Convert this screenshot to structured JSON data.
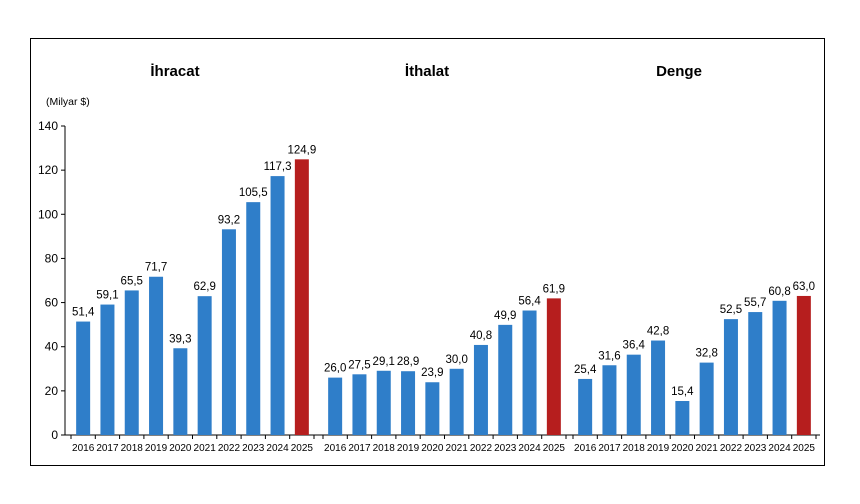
{
  "chart_data": {
    "type": "bar",
    "unit_label": "(Milyar $)",
    "ylim": [
      0,
      140
    ],
    "yticks": [
      0,
      20,
      40,
      60,
      80,
      100,
      120,
      140
    ],
    "grid": false,
    "colors": {
      "default": "#2f7ec9",
      "highlight": "#b61e1e"
    },
    "highlight_category": "2025",
    "panels": [
      {
        "title": "İhracat",
        "categories": [
          "2016",
          "2017",
          "2018",
          "2019",
          "2020",
          "2021",
          "2022",
          "2023",
          "2024",
          "2025"
        ],
        "values": [
          51.4,
          59.1,
          65.5,
          71.7,
          39.3,
          62.9,
          93.2,
          105.5,
          117.3,
          124.9
        ],
        "labels": [
          "51,4",
          "59,1",
          "65,5",
          "71,7",
          "39,3",
          "62,9",
          "93,2",
          "105,5",
          "117,3",
          "124,9"
        ]
      },
      {
        "title": "İthalat",
        "categories": [
          "2016",
          "2017",
          "2018",
          "2019",
          "2020",
          "2021",
          "2022",
          "2023",
          "2024",
          "2025"
        ],
        "values": [
          26.0,
          27.5,
          29.1,
          28.9,
          23.9,
          30.0,
          40.8,
          49.9,
          56.4,
          61.9
        ],
        "labels": [
          "26,0",
          "27,5",
          "29,1",
          "28,9",
          "23,9",
          "30,0",
          "40,8",
          "49,9",
          "56,4",
          "61,9"
        ]
      },
      {
        "title": "Denge",
        "categories": [
          "2016",
          "2017",
          "2018",
          "2019",
          "2020",
          "2021",
          "2022",
          "2023",
          "2024",
          "2025"
        ],
        "values": [
          25.4,
          31.6,
          36.4,
          42.8,
          15.4,
          32.8,
          52.5,
          55.7,
          60.8,
          63.0
        ],
        "labels": [
          "25,4",
          "31,6",
          "36,4",
          "42,8",
          "15,4",
          "32,8",
          "52,5",
          "55,7",
          "60,8",
          "63,0"
        ]
      }
    ]
  }
}
